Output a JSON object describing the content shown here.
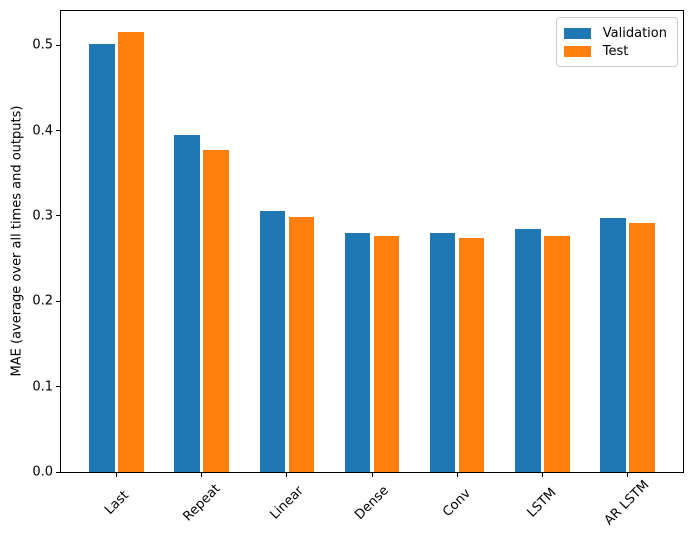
{
  "figure": {
    "background": "#ffffff",
    "frame_color": "#000000"
  },
  "chart_data": {
    "type": "bar",
    "title": "",
    "xlabel": "",
    "ylabel": "MAE (average over all times and outputs)",
    "categories": [
      "Last",
      "Repeat",
      "Linear",
      "Dense",
      "Conv",
      "LSTM",
      "AR LSTM"
    ],
    "series": [
      {
        "name": "Validation",
        "color": "#1f77b4",
        "offset": -0.17,
        "values": [
          0.501,
          0.395,
          0.306,
          0.28,
          0.28,
          0.285,
          0.297
        ]
      },
      {
        "name": "Test",
        "color": "#ff7f0e",
        "offset": 0.17,
        "values": [
          0.515,
          0.377,
          0.299,
          0.276,
          0.274,
          0.276,
          0.292
        ]
      }
    ],
    "ylim": [
      0,
      0.54
    ],
    "yticks": [
      0.0,
      0.1,
      0.2,
      0.3,
      0.4,
      0.5
    ],
    "ytick_labels": [
      "0.0",
      "0.1",
      "0.2",
      "0.3",
      "0.4",
      "0.5"
    ],
    "bar_width_frac": 0.3,
    "x_margin": 0.652,
    "xtick_rotation_deg": 45,
    "grid": false,
    "legend": {
      "position": "upper right",
      "entries": [
        "Validation",
        "Test"
      ]
    }
  }
}
